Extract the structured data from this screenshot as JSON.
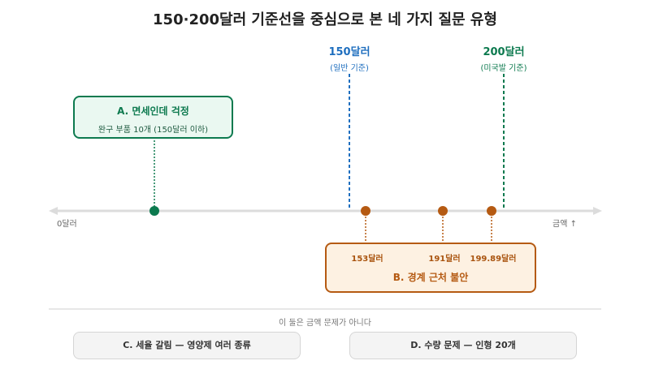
{
  "title": "150·200달러 기준선을 중심으로 본 네 가지 질문 유형",
  "thresholds": [
    {
      "value_label": "150달러",
      "note": "(일반 기준)",
      "color": "#1f6fbf"
    },
    {
      "value_label": "200달러",
      "note": "(미국발 기준)",
      "color": "#0d7a4f"
    }
  ],
  "axis": {
    "start_label": "0달러",
    "end_label": "금액 ↑"
  },
  "box_a": {
    "title": "A. 면세인데 걱정",
    "subtitle": "완구 부품 10개 (150달러 이하)",
    "color": "#0d7a4f"
  },
  "box_b": {
    "title": "B. 경계 근처 불안",
    "prices": [
      "153달러",
      "191달러",
      "199.89달러"
    ],
    "color": "#b55a12"
  },
  "non_amount_note": "이 둘은 금액 문제가 아니다",
  "box_c": {
    "title": "C. 세율 갈림 — 영양제 여러 종류"
  },
  "box_d": {
    "title": "D. 수량 문제 — 인형 20개"
  }
}
